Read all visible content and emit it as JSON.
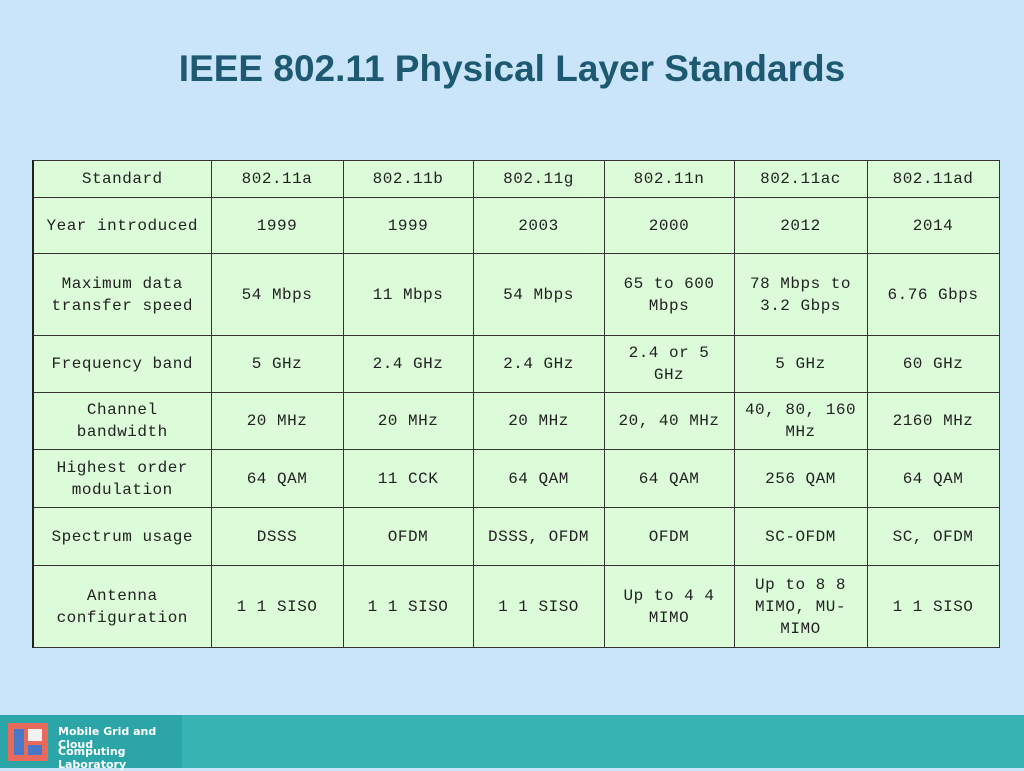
{
  "title": "IEEE 802.11 Physical Layer Standards",
  "table": {
    "header": [
      "Standard",
      "802.11a",
      "802.11b",
      "802.11g",
      "802.11n",
      "802.11ac",
      "802.11ad"
    ],
    "rows": [
      [
        "Year introduced",
        "1999",
        "1999",
        "2003",
        "2000",
        "2012",
        "2014"
      ],
      [
        "Maximum data transfer speed",
        "54 Mbps",
        "11 Mbps",
        "54 Mbps",
        "65 to 600 Mbps",
        "78 Mbps to 3.2 Gbps",
        "6.76 Gbps"
      ],
      [
        "Frequency band",
        "5 GHz",
        "2.4 GHz",
        "2.4 GHz",
        "2.4 or 5 GHz",
        "5 GHz",
        "60 GHz"
      ],
      [
        "Channel bandwidth",
        "20 MHz",
        "20 MHz",
        "20 MHz",
        "20, 40 MHz",
        "40, 80, 160 MHz",
        "2160 MHz"
      ],
      [
        "Highest order modulation",
        "64 QAM",
        "11 CCK",
        "64 QAM",
        "64 QAM",
        "256 QAM",
        "64 QAM"
      ],
      [
        "Spectrum usage",
        "DSSS",
        "OFDM",
        "DSSS, OFDM",
        "OFDM",
        "SC-OFDM",
        "SC, OFDM"
      ],
      [
        "Antenna configuration",
        "1 1 SISO",
        "1 1 SISO",
        "1 1 SISO",
        "Up to 4 4 MIMO",
        "Up to 8 8 MIMO, MU-MIMO",
        "1 1 SISO"
      ]
    ]
  },
  "footer": {
    "lines": [
      "Mobile Grid and Cloud",
      "Computing Laboratory"
    ]
  }
}
